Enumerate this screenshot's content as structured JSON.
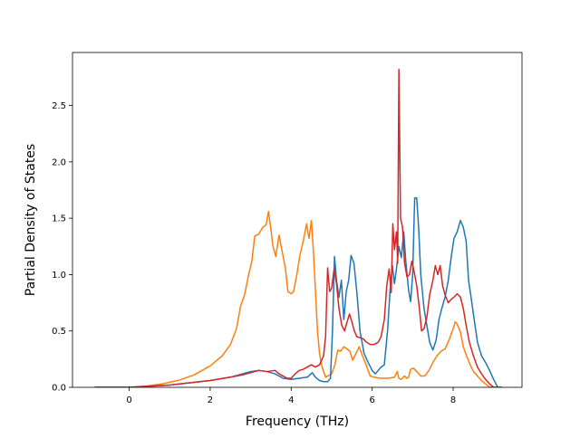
{
  "chart_data": {
    "type": "line",
    "title": "",
    "xlabel": "Frequency (THz)",
    "ylabel": "Partial Density of States",
    "xlim": [
      -1.4,
      9.7
    ],
    "ylim": [
      0,
      2.97
    ],
    "xticks": [
      0,
      2,
      4,
      6,
      8
    ],
    "xtick_labels": [
      "0",
      "2",
      "4",
      "6",
      "8"
    ],
    "yticks": [
      0.0,
      0.5,
      1.0,
      1.5,
      2.0,
      2.5
    ],
    "ytick_labels": [
      "0.0",
      "0.5",
      "1.0",
      "1.5",
      "2.0",
      "2.5"
    ],
    "grid": false,
    "legend": "none",
    "series": [
      {
        "color": "#ff7f0e",
        "points": [
          [
            -0.85,
            0
          ],
          [
            0,
            0
          ],
          [
            0.4,
            0.01
          ],
          [
            0.8,
            0.03
          ],
          [
            1.2,
            0.06
          ],
          [
            1.6,
            0.11
          ],
          [
            2.0,
            0.19
          ],
          [
            2.3,
            0.28
          ],
          [
            2.5,
            0.38
          ],
          [
            2.65,
            0.52
          ],
          [
            2.75,
            0.72
          ],
          [
            2.85,
            0.82
          ],
          [
            2.95,
            1.0
          ],
          [
            3.03,
            1.12
          ],
          [
            3.1,
            1.34
          ],
          [
            3.2,
            1.36
          ],
          [
            3.3,
            1.42
          ],
          [
            3.38,
            1.44
          ],
          [
            3.44,
            1.56
          ],
          [
            3.5,
            1.4
          ],
          [
            3.55,
            1.25
          ],
          [
            3.62,
            1.16
          ],
          [
            3.7,
            1.35
          ],
          [
            3.78,
            1.2
          ],
          [
            3.86,
            1.05
          ],
          [
            3.92,
            0.85
          ],
          [
            4.0,
            0.83
          ],
          [
            4.06,
            0.85
          ],
          [
            4.14,
            1.0
          ],
          [
            4.22,
            1.18
          ],
          [
            4.3,
            1.3
          ],
          [
            4.38,
            1.45
          ],
          [
            4.44,
            1.32
          ],
          [
            4.5,
            1.48
          ],
          [
            4.55,
            1.2
          ],
          [
            4.6,
            0.85
          ],
          [
            4.65,
            0.5
          ],
          [
            4.7,
            0.3
          ],
          [
            4.75,
            0.2
          ],
          [
            4.8,
            0.14
          ],
          [
            4.85,
            0.09
          ],
          [
            4.9,
            0.1
          ],
          [
            5.0,
            0.12
          ],
          [
            5.08,
            0.2
          ],
          [
            5.15,
            0.33
          ],
          [
            5.22,
            0.32
          ],
          [
            5.3,
            0.36
          ],
          [
            5.38,
            0.34
          ],
          [
            5.45,
            0.32
          ],
          [
            5.52,
            0.24
          ],
          [
            5.6,
            0.3
          ],
          [
            5.68,
            0.36
          ],
          [
            5.76,
            0.28
          ],
          [
            5.85,
            0.2
          ],
          [
            5.95,
            0.1
          ],
          [
            6.05,
            0.09
          ],
          [
            6.2,
            0.08
          ],
          [
            6.4,
            0.08
          ],
          [
            6.55,
            0.09
          ],
          [
            6.62,
            0.14
          ],
          [
            6.66,
            0.08
          ],
          [
            6.72,
            0.07
          ],
          [
            6.8,
            0.1
          ],
          [
            6.85,
            0.08
          ],
          [
            6.9,
            0.09
          ],
          [
            6.95,
            0.16
          ],
          [
            7.02,
            0.17
          ],
          [
            7.1,
            0.14
          ],
          [
            7.2,
            0.1
          ],
          [
            7.3,
            0.1
          ],
          [
            7.4,
            0.15
          ],
          [
            7.5,
            0.22
          ],
          [
            7.6,
            0.28
          ],
          [
            7.7,
            0.32
          ],
          [
            7.8,
            0.34
          ],
          [
            7.9,
            0.42
          ],
          [
            8.0,
            0.52
          ],
          [
            8.05,
            0.58
          ],
          [
            8.1,
            0.56
          ],
          [
            8.18,
            0.49
          ],
          [
            8.25,
            0.36
          ],
          [
            8.33,
            0.28
          ],
          [
            8.42,
            0.2
          ],
          [
            8.5,
            0.14
          ],
          [
            8.6,
            0.1
          ],
          [
            8.7,
            0.06
          ],
          [
            8.8,
            0.03
          ],
          [
            8.9,
            0
          ],
          [
            9.2,
            0
          ]
        ]
      },
      {
        "color": "#1f77b4",
        "points": [
          [
            -0.85,
            0
          ],
          [
            0,
            0
          ],
          [
            0.5,
            0.01
          ],
          [
            1.0,
            0.02
          ],
          [
            1.5,
            0.04
          ],
          [
            2.0,
            0.06
          ],
          [
            2.5,
            0.09
          ],
          [
            2.8,
            0.12
          ],
          [
            3.0,
            0.14
          ],
          [
            3.2,
            0.15
          ],
          [
            3.4,
            0.14
          ],
          [
            3.6,
            0.12
          ],
          [
            3.8,
            0.08
          ],
          [
            4.0,
            0.07
          ],
          [
            4.2,
            0.08
          ],
          [
            4.4,
            0.09
          ],
          [
            4.52,
            0.13
          ],
          [
            4.6,
            0.09
          ],
          [
            4.7,
            0.06
          ],
          [
            4.8,
            0.05
          ],
          [
            4.9,
            0.05
          ],
          [
            4.97,
            0.08
          ],
          [
            5.02,
            0.5
          ],
          [
            5.07,
            1.16
          ],
          [
            5.12,
            0.95
          ],
          [
            5.18,
            0.8
          ],
          [
            5.24,
            0.95
          ],
          [
            5.3,
            0.6
          ],
          [
            5.36,
            0.85
          ],
          [
            5.42,
            0.95
          ],
          [
            5.48,
            1.17
          ],
          [
            5.55,
            1.1
          ],
          [
            5.62,
            0.85
          ],
          [
            5.7,
            0.5
          ],
          [
            5.8,
            0.3
          ],
          [
            5.9,
            0.22
          ],
          [
            6.0,
            0.15
          ],
          [
            6.08,
            0.12
          ],
          [
            6.15,
            0.15
          ],
          [
            6.22,
            0.18
          ],
          [
            6.3,
            0.2
          ],
          [
            6.38,
            0.5
          ],
          [
            6.44,
            0.85
          ],
          [
            6.5,
            1.08
          ],
          [
            6.55,
            0.92
          ],
          [
            6.6,
            1.05
          ],
          [
            6.66,
            1.25
          ],
          [
            6.72,
            1.15
          ],
          [
            6.78,
            1.38
          ],
          [
            6.83,
            1.12
          ],
          [
            6.9,
            0.86
          ],
          [
            6.95,
            0.76
          ],
          [
            7.0,
            1.0
          ],
          [
            7.05,
            1.68
          ],
          [
            7.1,
            1.68
          ],
          [
            7.15,
            1.4
          ],
          [
            7.2,
            1.0
          ],
          [
            7.28,
            0.7
          ],
          [
            7.35,
            0.55
          ],
          [
            7.42,
            0.4
          ],
          [
            7.5,
            0.33
          ],
          [
            7.58,
            0.42
          ],
          [
            7.65,
            0.6
          ],
          [
            7.72,
            0.7
          ],
          [
            7.8,
            0.8
          ],
          [
            7.88,
            0.95
          ],
          [
            7.95,
            1.15
          ],
          [
            8.02,
            1.32
          ],
          [
            8.1,
            1.38
          ],
          [
            8.18,
            1.48
          ],
          [
            8.25,
            1.42
          ],
          [
            8.32,
            1.3
          ],
          [
            8.38,
            0.95
          ],
          [
            8.45,
            0.78
          ],
          [
            8.52,
            0.6
          ],
          [
            8.6,
            0.4
          ],
          [
            8.7,
            0.28
          ],
          [
            8.8,
            0.22
          ],
          [
            8.9,
            0.15
          ],
          [
            9.0,
            0.07
          ],
          [
            9.1,
            0
          ],
          [
            9.2,
            0
          ]
        ]
      },
      {
        "color": "#d62728",
        "points": [
          [
            -0.85,
            0
          ],
          [
            0,
            0
          ],
          [
            0.5,
            0.01
          ],
          [
            1.0,
            0.02
          ],
          [
            1.5,
            0.04
          ],
          [
            2.0,
            0.06
          ],
          [
            2.5,
            0.09
          ],
          [
            2.8,
            0.11
          ],
          [
            3.0,
            0.13
          ],
          [
            3.2,
            0.15
          ],
          [
            3.4,
            0.14
          ],
          [
            3.6,
            0.15
          ],
          [
            3.7,
            0.12
          ],
          [
            3.8,
            0.1
          ],
          [
            3.9,
            0.08
          ],
          [
            4.0,
            0.08
          ],
          [
            4.1,
            0.12
          ],
          [
            4.2,
            0.15
          ],
          [
            4.3,
            0.16
          ],
          [
            4.4,
            0.18
          ],
          [
            4.5,
            0.2
          ],
          [
            4.6,
            0.18
          ],
          [
            4.7,
            0.2
          ],
          [
            4.8,
            0.28
          ],
          [
            4.85,
            0.45
          ],
          [
            4.9,
            1.06
          ],
          [
            4.95,
            0.85
          ],
          [
            5.0,
            0.88
          ],
          [
            5.06,
            1.05
          ],
          [
            5.12,
            0.92
          ],
          [
            5.18,
            0.7
          ],
          [
            5.25,
            0.55
          ],
          [
            5.32,
            0.5
          ],
          [
            5.38,
            0.58
          ],
          [
            5.44,
            0.65
          ],
          [
            5.5,
            0.58
          ],
          [
            5.56,
            0.5
          ],
          [
            5.62,
            0.45
          ],
          [
            5.7,
            0.44
          ],
          [
            5.78,
            0.43
          ],
          [
            5.86,
            0.4
          ],
          [
            5.95,
            0.38
          ],
          [
            6.05,
            0.38
          ],
          [
            6.15,
            0.4
          ],
          [
            6.22,
            0.45
          ],
          [
            6.3,
            0.6
          ],
          [
            6.36,
            0.9
          ],
          [
            6.42,
            1.05
          ],
          [
            6.47,
            0.84
          ],
          [
            6.51,
            1.45
          ],
          [
            6.55,
            1.22
          ],
          [
            6.6,
            1.38
          ],
          [
            6.63,
            1.1
          ],
          [
            6.66,
            2.82
          ],
          [
            6.7,
            1.5
          ],
          [
            6.75,
            1.42
          ],
          [
            6.8,
            1.1
          ],
          [
            6.86,
            0.98
          ],
          [
            6.92,
            1.0
          ],
          [
            6.98,
            1.12
          ],
          [
            7.04,
            1.02
          ],
          [
            7.1,
            0.9
          ],
          [
            7.16,
            0.72
          ],
          [
            7.22,
            0.5
          ],
          [
            7.28,
            0.52
          ],
          [
            7.35,
            0.62
          ],
          [
            7.42,
            0.82
          ],
          [
            7.5,
            0.95
          ],
          [
            7.56,
            1.08
          ],
          [
            7.62,
            1.0
          ],
          [
            7.68,
            1.08
          ],
          [
            7.74,
            0.9
          ],
          [
            7.8,
            0.82
          ],
          [
            7.88,
            0.75
          ],
          [
            7.95,
            0.78
          ],
          [
            8.02,
            0.8
          ],
          [
            8.1,
            0.83
          ],
          [
            8.18,
            0.8
          ],
          [
            8.25,
            0.7
          ],
          [
            8.32,
            0.55
          ],
          [
            8.4,
            0.4
          ],
          [
            8.5,
            0.28
          ],
          [
            8.6,
            0.18
          ],
          [
            8.7,
            0.12
          ],
          [
            8.8,
            0.07
          ],
          [
            8.9,
            0.03
          ],
          [
            9.0,
            0
          ],
          [
            9.2,
            0
          ]
        ]
      }
    ]
  }
}
